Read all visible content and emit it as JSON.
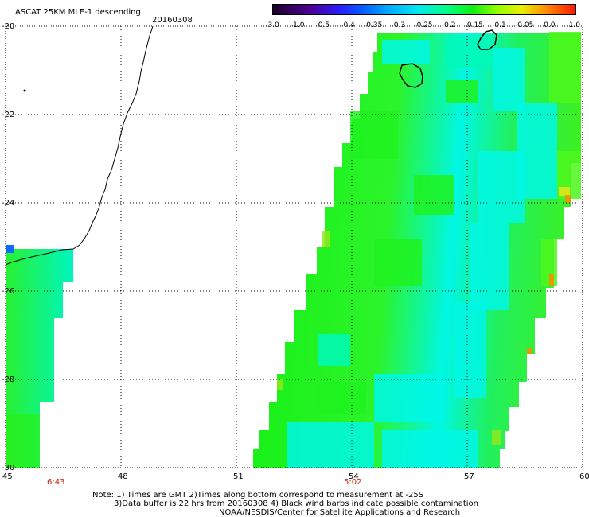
{
  "header": {
    "title": "ASCAT 25KM MLE-1 descending",
    "date": "20160308"
  },
  "colorbar": {
    "labels": [
      "-3.0",
      "-1.0",
      "-0.5",
      "-0.4",
      "-0.35",
      "-0.3",
      "-0.25",
      "-0.2",
      "-0.15",
      "-0.1",
      "-0.05",
      "0.0",
      "1.0"
    ],
    "colors": [
      "#1b002b",
      "#4b0090",
      "#2a1cff",
      "#0060ff",
      "#00a8ff",
      "#00e8f0",
      "#00ff80",
      "#10f010",
      "#90ff00",
      "#e8f000",
      "#ff9000",
      "#ff1500"
    ]
  },
  "axes": {
    "lat_labels": [
      "-20",
      "-22",
      "-24",
      "-26",
      "-28",
      "-30"
    ],
    "lon_labels": [
      "45",
      "48",
      "51",
      "54",
      "57",
      "60"
    ],
    "lon_range": [
      45,
      60
    ],
    "lat_range": [
      -30,
      -20
    ]
  },
  "pass_times": [
    "6:43",
    "5:02"
  ],
  "notes": {
    "line1": "Note: 1) Times are GMT 2)Times along bottom correspond to measurement at -25S",
    "line2": "3)Data buffer is 22 hrs from 20160308 4) Black wind barbs indicate possible contamination",
    "line3": "NOAA/NESDIS/Center for Satellite Applications and Research"
  },
  "map": {
    "colors": {
      "cyan": "#00f7e6",
      "aqua": "#00f9b8",
      "green": "#1ef21e",
      "lime": "#4cf71c",
      "yellowgreen": "#8ee81c",
      "yellow": "#e6e61e",
      "orange": "#ff8a00",
      "blue": "#0a6cff"
    },
    "coastline": "Madagascar east coast",
    "islands": [
      "Mauritius",
      "Reunion"
    ]
  }
}
